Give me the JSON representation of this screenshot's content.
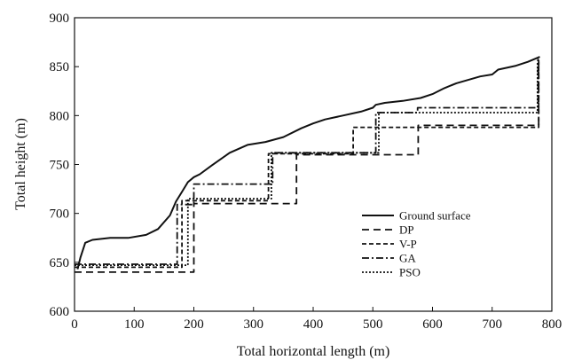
{
  "chart_data": {
    "type": "line",
    "title": "",
    "xlabel": "Total horizontal length (m)",
    "ylabel": "Total height (m)",
    "xlim": [
      0,
      800
    ],
    "ylim": [
      600,
      900
    ],
    "xticks": [
      0,
      100,
      200,
      300,
      400,
      500,
      600,
      700,
      800
    ],
    "yticks": [
      600,
      650,
      700,
      750,
      800,
      850,
      900
    ],
    "grid": false,
    "legend_position": "right",
    "series": [
      {
        "name": "Ground surface",
        "style": "solid",
        "x": [
          5,
          10,
          18,
          30,
          60,
          90,
          120,
          140,
          160,
          170,
          180,
          190,
          200,
          210,
          230,
          260,
          290,
          320,
          350,
          380,
          400,
          420,
          450,
          480,
          500,
          505,
          520,
          550,
          580,
          600,
          620,
          640,
          680,
          700,
          710,
          740,
          760,
          780
        ],
        "y": [
          643,
          655,
          670,
          673,
          675,
          675,
          678,
          684,
          698,
          712,
          722,
          732,
          737,
          740,
          749,
          762,
          770,
          773,
          778,
          787,
          792,
          796,
          800,
          804,
          808,
          811,
          813,
          815,
          818,
          822,
          828,
          833,
          840,
          842,
          847,
          851,
          855,
          860
        ]
      },
      {
        "name": "DP",
        "style": "dashed",
        "x": [
          0,
          200,
          200,
          372,
          372,
          576,
          576,
          778,
          778
        ],
        "y": [
          640,
          640,
          710,
          710,
          760,
          760,
          790,
          790,
          855
        ]
      },
      {
        "name": "V-P",
        "style": "short-dashed",
        "x": [
          0,
          180,
          180,
          325,
          325,
          467,
          467,
          778,
          778
        ],
        "y": [
          645,
          645,
          713,
          713,
          761,
          761,
          788,
          788,
          860
        ]
      },
      {
        "name": "GA",
        "style": "dash-dot",
        "x": [
          0,
          172,
          172,
          200,
          200,
          332,
          332,
          505,
          505,
          575,
          575,
          777,
          777
        ],
        "y": [
          648,
          648,
          709,
          709,
          730,
          730,
          762,
          762,
          803,
          803,
          808,
          808,
          858
        ]
      },
      {
        "name": "PSO",
        "style": "dotted",
        "x": [
          0,
          190,
          190,
          330,
          330,
          510,
          510,
          776,
          776
        ],
        "y": [
          647,
          647,
          715,
          715,
          762,
          762,
          803,
          803,
          856
        ]
      }
    ]
  }
}
